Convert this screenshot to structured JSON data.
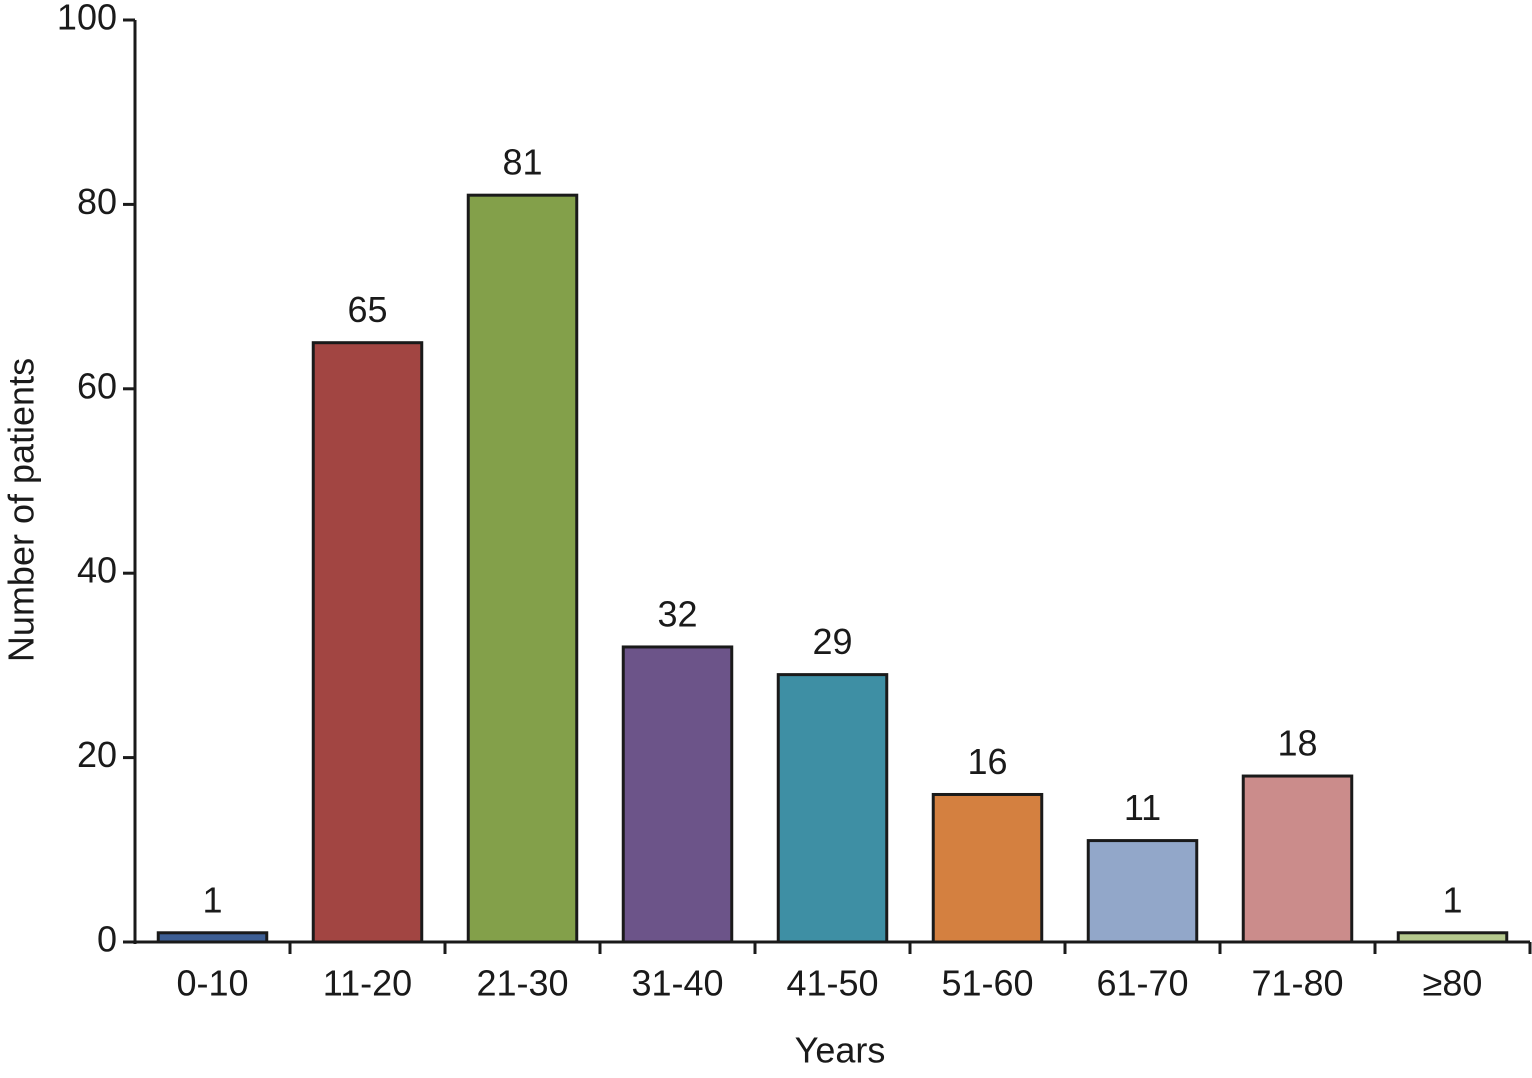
{
  "chart_data": {
    "type": "bar",
    "xlabel": "Years",
    "ylabel": "Number of patients",
    "categories": [
      "0-10",
      "11-20",
      "21-30",
      "31-40",
      "41-50",
      "51-60",
      "61-70",
      "71-80",
      "≥80"
    ],
    "values": [
      1,
      65,
      81,
      32,
      29,
      16,
      11,
      18,
      1
    ],
    "colors": [
      "#3d5e94",
      "#a24542",
      "#83a04a",
      "#6c5489",
      "#3e8fa4",
      "#d48040",
      "#92a7c9",
      "#cb8c8b",
      "#b5c98e"
    ],
    "ylim": [
      0,
      100
    ],
    "yticks": [
      0,
      20,
      40,
      60,
      80,
      100
    ],
    "grid": false
  }
}
